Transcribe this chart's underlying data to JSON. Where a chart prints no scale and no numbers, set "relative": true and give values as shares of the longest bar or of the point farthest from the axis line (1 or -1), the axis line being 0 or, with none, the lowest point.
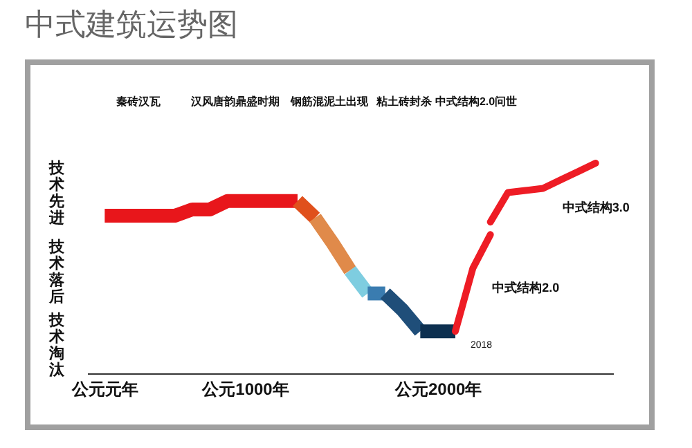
{
  "chart_data": {
    "type": "line",
    "title": "中式建筑运势图",
    "relative": true,
    "categories": [
      "公元元年",
      null,
      null,
      null,
      null,
      null,
      null,
      null,
      "公元1000年",
      null,
      null,
      null,
      null,
      null,
      null,
      null,
      null,
      null,
      null,
      "公元2000年",
      null,
      null,
      null,
      null,
      null,
      null,
      null,
      null,
      null
    ],
    "series": [
      {
        "color": "#e8161b",
        "values": [
          0.75,
          0.75,
          0.75,
          0.75,
          0.75,
          0.78,
          0.78,
          0.82,
          0.82,
          0.82,
          0.82,
          0.82,
          null,
          null,
          null,
          null,
          null,
          null,
          null,
          null,
          null,
          null,
          null,
          null,
          null,
          null,
          null,
          null,
          null
        ]
      },
      {
        "color": "#e0501c",
        "values": [
          null,
          null,
          null,
          null,
          null,
          null,
          null,
          null,
          null,
          null,
          null,
          0.82,
          0.74,
          null,
          null,
          null,
          null,
          null,
          null,
          null,
          null,
          null,
          null,
          null,
          null,
          null,
          null,
          null,
          null
        ]
      },
      {
        "color": "#e08a4a",
        "values": [
          null,
          null,
          null,
          null,
          null,
          null,
          null,
          null,
          null,
          null,
          null,
          null,
          0.74,
          0.62,
          0.49,
          null,
          null,
          null,
          null,
          null,
          null,
          null,
          null,
          null,
          null,
          null,
          null,
          null,
          null
        ]
      },
      {
        "color": "#7ecde0",
        "values": [
          null,
          null,
          null,
          null,
          null,
          null,
          null,
          null,
          null,
          null,
          null,
          null,
          null,
          null,
          0.49,
          0.38,
          null,
          null,
          null,
          null,
          null,
          null,
          null,
          null,
          null,
          null,
          null,
          null,
          null
        ]
      },
      {
        "color": "#3a7cb0",
        "values": [
          null,
          null,
          null,
          null,
          null,
          null,
          null,
          null,
          null,
          null,
          null,
          null,
          null,
          null,
          null,
          0.38,
          0.38,
          null,
          null,
          null,
          null,
          null,
          null,
          null,
          null,
          null,
          null,
          null,
          null
        ]
      },
      {
        "color": "#1f4e79",
        "values": [
          null,
          null,
          null,
          null,
          null,
          null,
          null,
          null,
          null,
          null,
          null,
          null,
          null,
          null,
          null,
          null,
          0.38,
          0.3,
          0.2,
          null,
          null,
          null,
          null,
          null,
          null,
          null,
          null,
          null,
          null
        ]
      },
      {
        "color": "#0d3050",
        "values": [
          null,
          null,
          null,
          null,
          null,
          null,
          null,
          null,
          null,
          null,
          null,
          null,
          null,
          null,
          null,
          null,
          null,
          null,
          0.2,
          0.2,
          0.2,
          null,
          null,
          null,
          null,
          null,
          null,
          null,
          null
        ]
      },
      {
        "name": "中式结构2.0",
        "color": "#ee1c25",
        "values": [
          null,
          null,
          null,
          null,
          null,
          null,
          null,
          null,
          null,
          null,
          null,
          null,
          null,
          null,
          null,
          null,
          null,
          null,
          null,
          null,
          0.2,
          0.5,
          0.66,
          null,
          null,
          null,
          null,
          null,
          null
        ]
      },
      {
        "name": "中式结构3.0",
        "color": "#ee1c25",
        "values": [
          null,
          null,
          null,
          null,
          null,
          null,
          null,
          null,
          null,
          null,
          null,
          null,
          null,
          null,
          null,
          null,
          null,
          null,
          null,
          null,
          null,
          null,
          0.72,
          0.86,
          0.87,
          0.88,
          0.92,
          0.96,
          1.0
        ]
      }
    ],
    "annotations": [
      "秦砖汉瓦",
      "汉风唐韵鼎盛时期",
      "钢筋混泥土出现",
      "粘土砖封杀",
      "中式结构2.0问世",
      "技术先进",
      "技术落后",
      "技术淘汰",
      "2018"
    ]
  }
}
